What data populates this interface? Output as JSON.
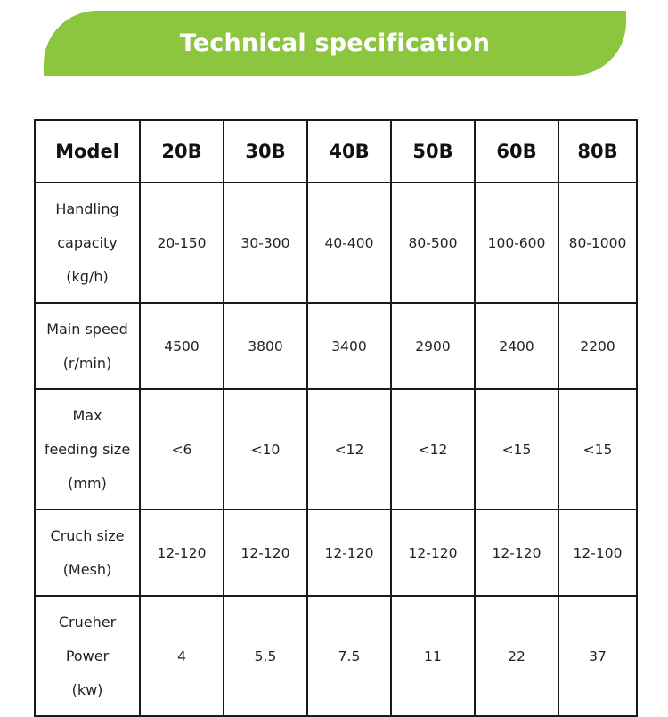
{
  "banner": {
    "title": "Technical specification",
    "color": "#8cc63f"
  },
  "table": {
    "headers": [
      "Model",
      "20B",
      "30B",
      "40B",
      "50B",
      "60B",
      "80B"
    ],
    "rows": [
      {
        "label_lines": [
          "Handling",
          "capacity",
          "(kg/h)"
        ],
        "values": [
          "20-150",
          "30-300",
          "40-400",
          "80-500",
          "100-600",
          "80-1000"
        ]
      },
      {
        "label_lines": [
          "Main speed",
          "(r/min)"
        ],
        "values": [
          "4500",
          "3800",
          "3400",
          "2900",
          "2400",
          "2200"
        ]
      },
      {
        "label_lines": [
          "Max",
          "feeding size",
          "(mm)"
        ],
        "values": [
          "<6",
          "<10",
          "<12",
          "<12",
          "<15",
          "<15"
        ]
      },
      {
        "label_lines": [
          "Cruch size",
          "(Mesh)"
        ],
        "values": [
          "12-120",
          "12-120",
          "12-120",
          "12-120",
          "12-120",
          "12-100"
        ]
      },
      {
        "label_lines": [
          "Crueher",
          "Power",
          "(kw)"
        ],
        "values": [
          "4",
          "5.5",
          "7.5",
          "11",
          "22",
          "37"
        ]
      }
    ]
  }
}
